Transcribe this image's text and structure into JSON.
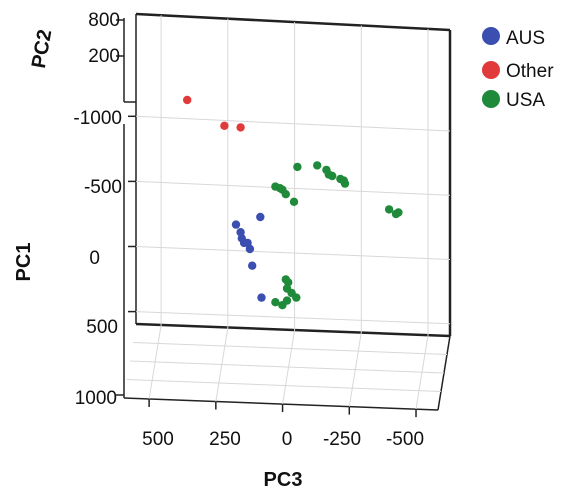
{
  "chart_data": {
    "type": "scatter",
    "subtype": "3d-pca",
    "title": "",
    "axes": {
      "pc1": {
        "label": "PC1",
        "ticks": [
          "-1000",
          "-500",
          "0",
          "500",
          "1000"
        ]
      },
      "pc2": {
        "label": "PC2",
        "ticks": [
          "800",
          "200"
        ]
      },
      "pc3": {
        "label": "PC3",
        "ticks": [
          "500",
          "250",
          "0",
          "-250",
          "-500"
        ]
      }
    },
    "legend": {
      "placement": "top-right",
      "entries": [
        {
          "label": "AUS",
          "color": "#3a4fb0"
        },
        {
          "label": "Other",
          "color": "#e03a3a"
        },
        {
          "label": "USA",
          "color": "#1f8a3a"
        }
      ]
    },
    "series": [
      {
        "name": "AUS",
        "color": "#3a4fb0",
        "points": [
          {
            "pc3": 220,
            "pc1": -180
          },
          {
            "pc3": 200,
            "pc1": -130
          },
          {
            "pc3": 195,
            "pc1": -90
          },
          {
            "pc3": 185,
            "pc1": -60
          },
          {
            "pc3": 170,
            "pc1": -60
          },
          {
            "pc3": 160,
            "pc1": -20
          },
          {
            "pc3": 150,
            "pc1": 90
          },
          {
            "pc3": 110,
            "pc1": 300
          },
          {
            "pc3": 115,
            "pc1": -230
          }
        ]
      },
      {
        "name": "Other",
        "color": "#e03a3a",
        "points": [
          {
            "pc3": 430,
            "pc1": -1000
          },
          {
            "pc3": 270,
            "pc1": -830
          },
          {
            "pc3": 200,
            "pc1": -820
          }
        ]
      },
      {
        "name": "USA",
        "color": "#1f8a3a",
        "points": [
          {
            "pc3": 50,
            "pc1": -430
          },
          {
            "pc3": 30,
            "pc1": -420
          },
          {
            "pc3": 20,
            "pc1": -410
          },
          {
            "pc3": 5,
            "pc1": -380
          },
          {
            "pc3": -30,
            "pc1": -330
          },
          {
            "pc3": -45,
            "pc1": -560
          },
          {
            "pc3": -130,
            "pc1": -570
          },
          {
            "pc3": -170,
            "pc1": -540
          },
          {
            "pc3": -180,
            "pc1": -510
          },
          {
            "pc3": -195,
            "pc1": -500
          },
          {
            "pc3": -230,
            "pc1": -480
          },
          {
            "pc3": -245,
            "pc1": -470
          },
          {
            "pc3": -250,
            "pc1": -450
          },
          {
            "pc3": -440,
            "pc1": -280
          },
          {
            "pc3": -470,
            "pc1": -250
          },
          {
            "pc3": -480,
            "pc1": -260
          },
          {
            "pc3": 5,
            "pc1": 180
          },
          {
            "pc3": -5,
            "pc1": 200
          },
          {
            "pc3": 0,
            "pc1": 240
          },
          {
            "pc3": -20,
            "pc1": 270
          },
          {
            "pc3": -40,
            "pc1": 300
          },
          {
            "pc3": 0,
            "pc1": 320
          },
          {
            "pc3": 20,
            "pc1": 350
          },
          {
            "pc3": 50,
            "pc1": 330
          }
        ]
      }
    ]
  }
}
